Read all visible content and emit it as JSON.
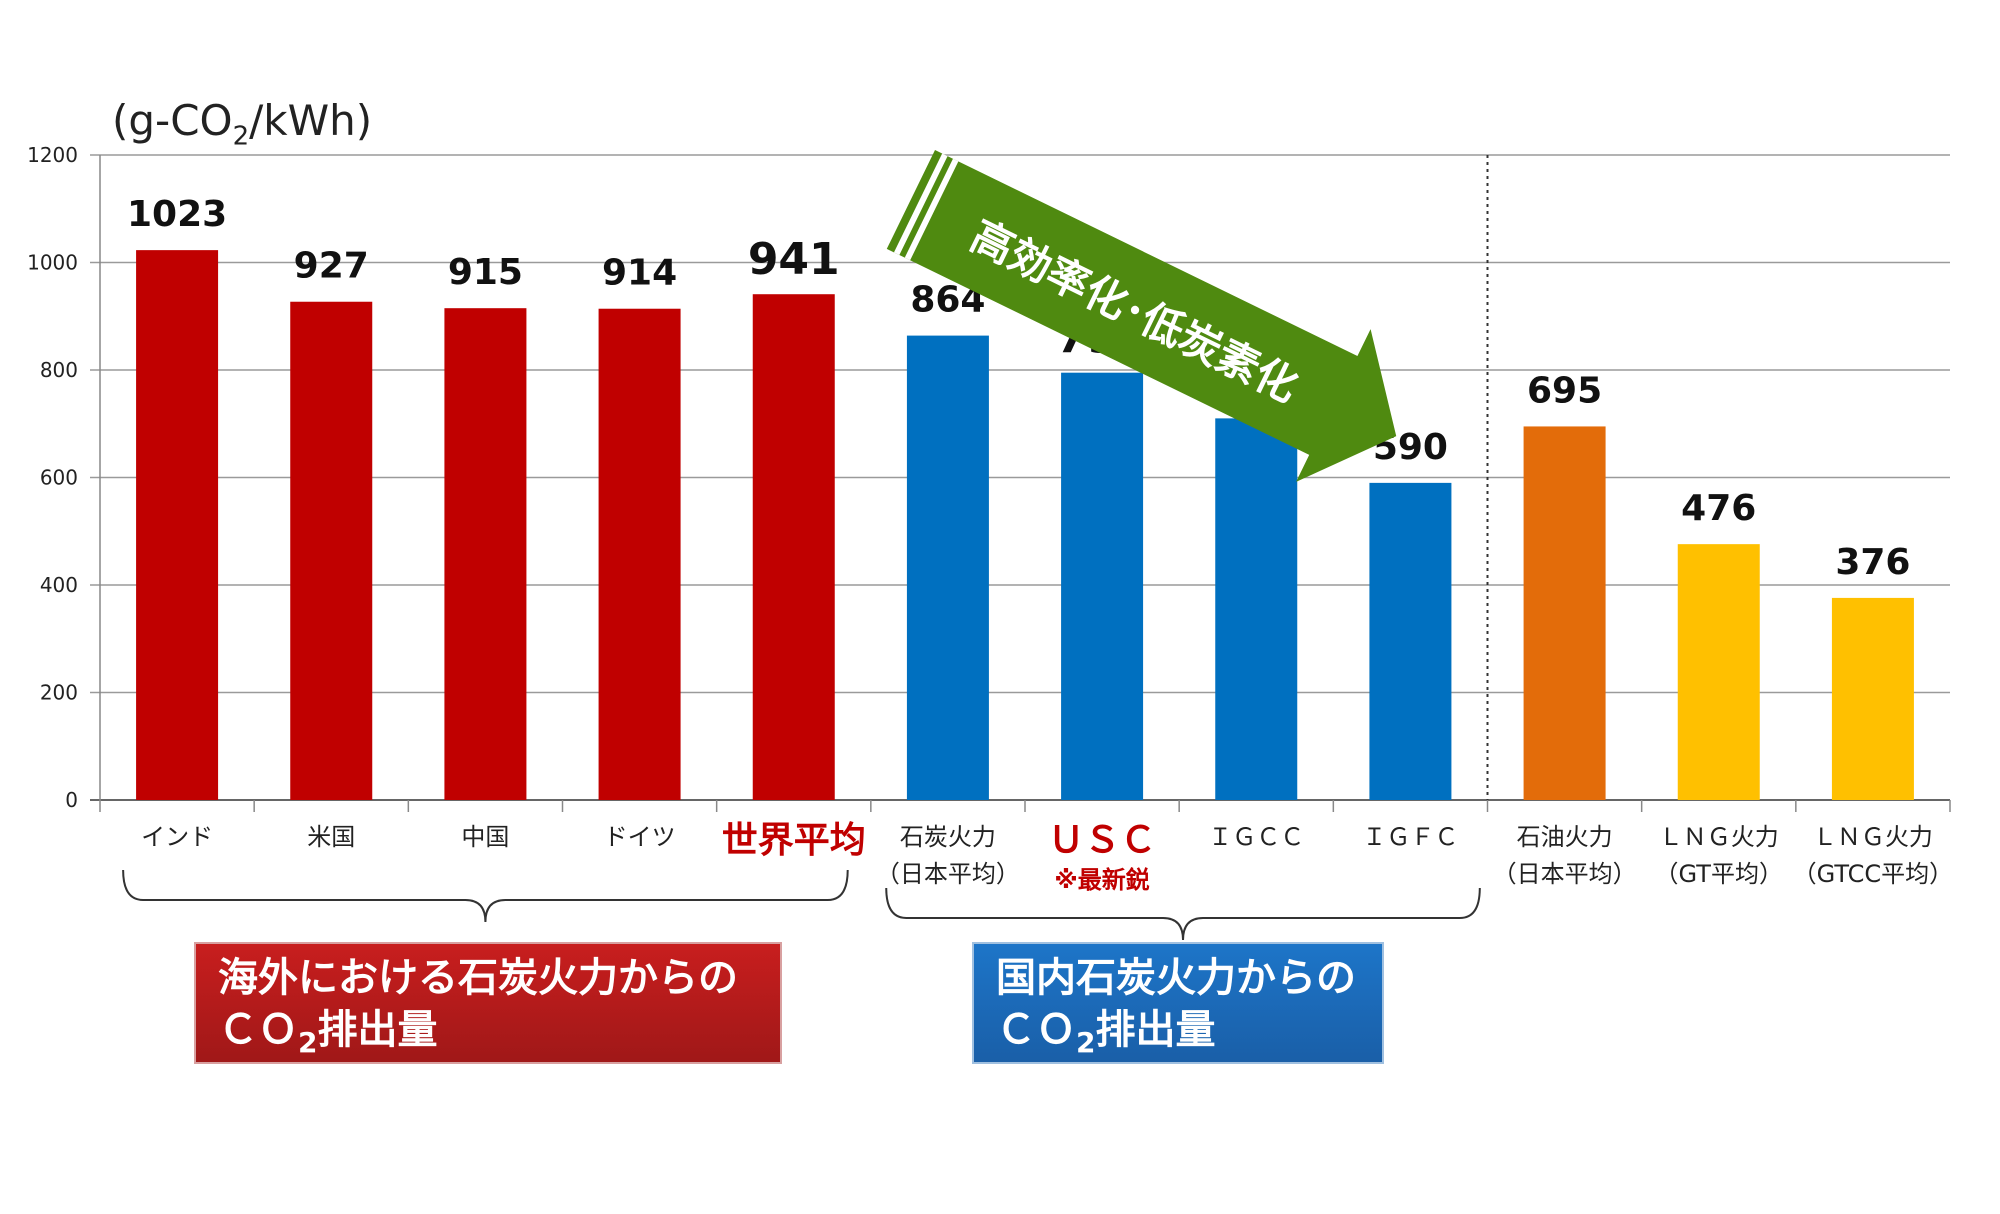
{
  "chart_data": {
    "type": "bar",
    "unit_label": "(g-CO",
    "unit_sub": "2",
    "unit_tail": "/kWh)",
    "ylim": [
      0,
      1200
    ],
    "yticks": [
      0,
      200,
      400,
      600,
      800,
      1000,
      1200
    ],
    "grid": true,
    "categories": [
      {
        "label": "インド",
        "sub": "",
        "note": "",
        "value": 1023,
        "color": "#c00000",
        "label_color": "#222222",
        "label_bold": false,
        "value_size": "normal"
      },
      {
        "label": "米国",
        "sub": "",
        "note": "",
        "value": 927,
        "color": "#c00000",
        "label_color": "#222222",
        "label_bold": false,
        "value_size": "normal"
      },
      {
        "label": "中国",
        "sub": "",
        "note": "",
        "value": 915,
        "color": "#c00000",
        "label_color": "#222222",
        "label_bold": false,
        "value_size": "normal"
      },
      {
        "label": "ドイツ",
        "sub": "",
        "note": "",
        "value": 914,
        "color": "#c00000",
        "label_color": "#222222",
        "label_bold": false,
        "value_size": "normal"
      },
      {
        "label": "世界平均",
        "sub": "",
        "note": "",
        "value": 941,
        "color": "#c00000",
        "label_color": "#c00000",
        "label_bold": true,
        "value_size": "large"
      },
      {
        "label": "石炭火力",
        "sub": "（日本平均）",
        "note": "",
        "value": 864,
        "color": "#0070c0",
        "label_color": "#222222",
        "label_bold": false,
        "value_size": "normal"
      },
      {
        "label": "ＵＳＣ",
        "sub": "",
        "note": "※最新鋭",
        "value": 795,
        "color": "#0070c0",
        "label_color": "#c00000",
        "label_bold": true,
        "value_size": "large"
      },
      {
        "label": "ＩＧＣＣ",
        "sub": "",
        "note": "",
        "value": 710,
        "color": "#0070c0",
        "label_color": "#222222",
        "label_bold": false,
        "value_size": "normal"
      },
      {
        "label": "ＩＧＦＣ",
        "sub": "",
        "note": "",
        "value": 590,
        "color": "#0070c0",
        "label_color": "#222222",
        "label_bold": false,
        "value_size": "normal"
      },
      {
        "label": "石油火力",
        "sub": "（日本平均）",
        "note": "",
        "value": 695,
        "color": "#e36c0a",
        "label_color": "#222222",
        "label_bold": false,
        "value_size": "normal"
      },
      {
        "label": "ＬＮＧ火力",
        "sub": "（GT平均）",
        "note": "",
        "value": 476,
        "color": "#ffc000",
        "label_color": "#222222",
        "label_bold": false,
        "value_size": "normal"
      },
      {
        "label": "ＬＮＧ火力",
        "sub": "（GTCC平均）",
        "note": "",
        "value": 376,
        "color": "#ffc000",
        "label_color": "#222222",
        "label_bold": false,
        "value_size": "normal"
      }
    ],
    "arrow_text": "高効率化･低炭素化",
    "arrow_color": "#4f8a10",
    "groups": [
      {
        "line1": "海外における石炭火力からの",
        "line2a": "ＣＯ",
        "line2sub": "2",
        "line2b": "排出量"
      },
      {
        "line1": "国内石炭火力からの",
        "line2a": "ＣＯ",
        "line2sub": "2",
        "line2b": "排出量"
      }
    ]
  }
}
